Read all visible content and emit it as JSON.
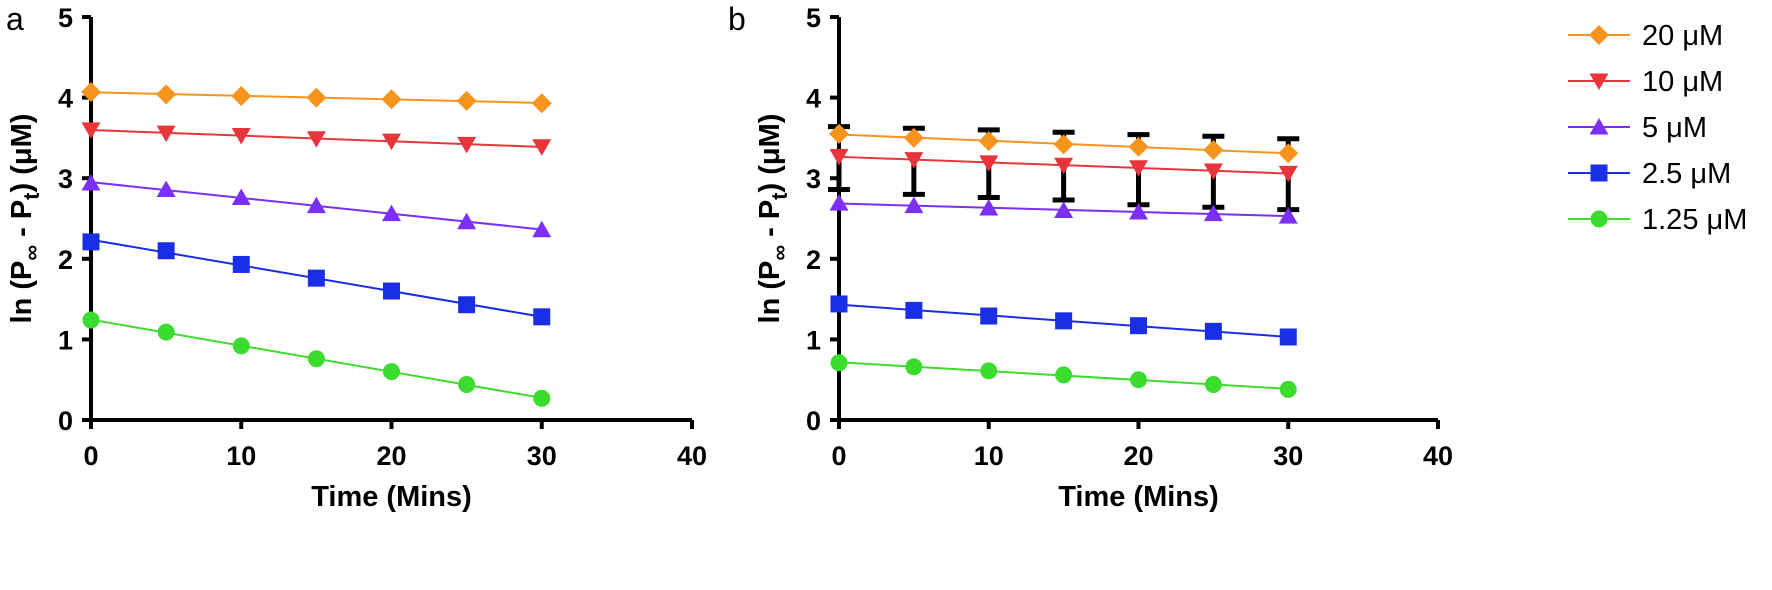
{
  "chart_data": [
    {
      "panel_label": "a",
      "type": "line",
      "xlabel": "Time (Mins)",
      "ylabel": {
        "main": "ln (P",
        "sub1": "∞",
        "mid": " - P",
        "sub2": "t",
        "end": ") (μM)"
      },
      "xlim": [
        0,
        40
      ],
      "ylim": [
        0,
        5
      ],
      "xticks": [
        "0",
        "10",
        "20",
        "30",
        "40"
      ],
      "yticks": [
        "0",
        "1",
        "2",
        "3",
        "4",
        "5"
      ],
      "grid": false,
      "x": [
        0,
        5,
        10,
        15,
        20,
        25,
        30
      ],
      "series": [
        {
          "name": "20 μM",
          "color": "#f7941d",
          "marker": "diamond",
          "values": [
            4.07,
            4.04,
            4.02,
            4.0,
            3.98,
            3.96,
            3.93
          ]
        },
        {
          "name": "10 μM",
          "color": "#e8353b",
          "marker": "triangle-down",
          "values": [
            3.6,
            3.56,
            3.53,
            3.49,
            3.46,
            3.42,
            3.39
          ]
        },
        {
          "name": "5 μM",
          "color": "#7b2ff7",
          "marker": "triangle-up",
          "values": [
            2.94,
            2.86,
            2.76,
            2.66,
            2.56,
            2.46,
            2.36
          ]
        },
        {
          "name": "2.5 μM",
          "color": "#1a2ee6",
          "marker": "square",
          "values": [
            2.21,
            2.1,
            1.93,
            1.76,
            1.6,
            1.43,
            1.28
          ]
        },
        {
          "name": "1.25 μM",
          "color": "#3cdc2f",
          "marker": "circle",
          "values": [
            1.24,
            1.09,
            0.92,
            0.76,
            0.6,
            0.44,
            0.27
          ]
        }
      ]
    },
    {
      "panel_label": "b",
      "type": "line",
      "xlabel": "Time (Mins)",
      "ylabel": {
        "main": "ln (P",
        "sub1": "∞",
        "mid": " - P",
        "sub2": "t",
        "end": ") (μM)"
      },
      "xlim": [
        0,
        40
      ],
      "ylim": [
        0,
        5
      ],
      "xticks": [
        "0",
        "10",
        "20",
        "30",
        "40"
      ],
      "yticks": [
        "0",
        "1",
        "2",
        "3",
        "4",
        "5"
      ],
      "grid": false,
      "legend_position": "right",
      "x": [
        0,
        5,
        10,
        15,
        20,
        25,
        30
      ],
      "series": [
        {
          "name": "20 μM",
          "color": "#f7941d",
          "marker": "diamond",
          "values": [
            3.55,
            3.5,
            3.46,
            3.42,
            3.39,
            3.35,
            3.31
          ],
          "error_upper": [
            3.64,
            3.62,
            3.6,
            3.57,
            3.54,
            3.52,
            3.49
          ]
        },
        {
          "name": "10 μM",
          "color": "#e8353b",
          "marker": "triangle-down",
          "values": [
            3.27,
            3.23,
            3.19,
            3.16,
            3.13,
            3.09,
            3.06
          ],
          "error_lower": [
            2.86,
            2.8,
            2.76,
            2.73,
            2.67,
            2.64,
            2.61
          ]
        },
        {
          "name": "5 μM",
          "color": "#7b2ff7",
          "marker": "triangle-up",
          "values": [
            2.69,
            2.66,
            2.63,
            2.6,
            2.58,
            2.56,
            2.53
          ]
        },
        {
          "name": "2.5 μM",
          "color": "#1a2ee6",
          "marker": "square",
          "values": [
            1.44,
            1.36,
            1.29,
            1.23,
            1.17,
            1.1,
            1.03
          ]
        },
        {
          "name": "1.25 μM",
          "color": "#3cdc2f",
          "marker": "circle",
          "values": [
            0.71,
            0.66,
            0.61,
            0.56,
            0.5,
            0.44,
            0.38
          ]
        }
      ]
    }
  ]
}
